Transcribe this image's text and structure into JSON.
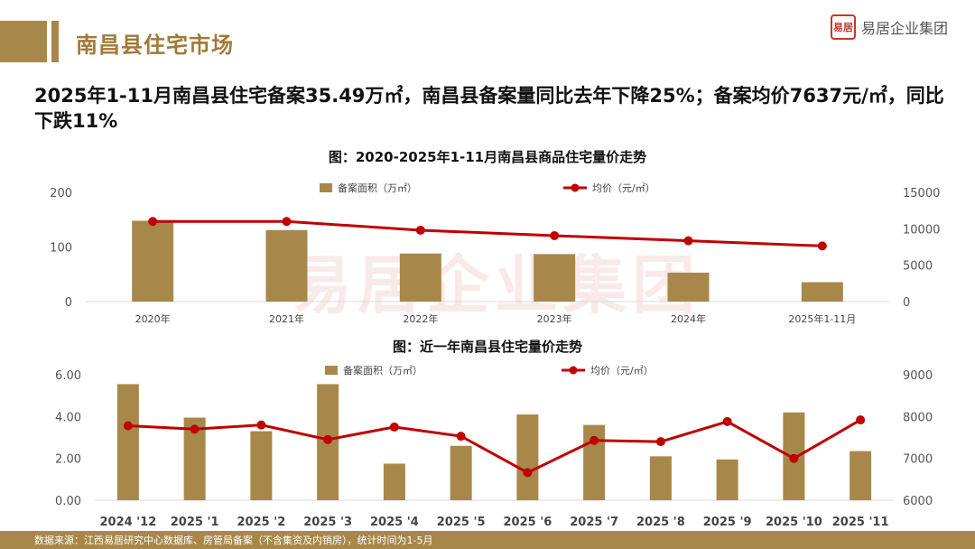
{
  "header": {
    "title": "南昌县住宅市场",
    "logo_text": "易居企业集团",
    "logo_seal": "易居"
  },
  "headline": "2025年1-11月南昌县住宅备案35.49万㎡，南昌县备案量同比去年下降25%；备案均价7637元/㎡，同比下跌11%",
  "watermark": "易居企业集团",
  "footer": "数据来源：江西易居研究中心数据库、房管局备案（不含集资及内销房），统计时间为1-5月",
  "colors": {
    "bar": "#a8884a",
    "line": "#c00000",
    "accent": "#a8884a"
  },
  "chart_data": [
    {
      "type": "bar+line",
      "title": "图：2020-2025年1-11月南昌县商品住宅量价走势",
      "categories": [
        "2020年",
        "2021年",
        "2022年",
        "2023年",
        "2024年",
        "2025年1-11月"
      ],
      "series": [
        {
          "name": "备案面积（万㎡）",
          "type": "bar",
          "axis": "left",
          "values": [
            148,
            131,
            88,
            87,
            53,
            35.49
          ]
        },
        {
          "name": "均价（元/㎡）",
          "type": "line",
          "axis": "right",
          "values": [
            11000,
            11000,
            9800,
            9050,
            8350,
            7637
          ]
        }
      ],
      "y_left": {
        "ylim": [
          0,
          200
        ],
        "ticks": [
          "0",
          "100",
          "200"
        ]
      },
      "y_right": {
        "ylim": [
          0,
          15000
        ],
        "ticks": [
          "0",
          "5000",
          "10000",
          "15000"
        ]
      },
      "legend": "top-center",
      "grid": false
    },
    {
      "type": "bar+line",
      "title": "图：近一年南昌县住宅量价走势",
      "categories": [
        "2024 '12",
        "2025 '1",
        "2025 '2",
        "2025 '3",
        "2025 '4",
        "2025 '5",
        "2025 '6",
        "2025 '7",
        "2025 '8",
        "2025 '9",
        "2025 '10",
        "2025 '11"
      ],
      "series": [
        {
          "name": "备案面积（万㎡）",
          "type": "bar",
          "axis": "left",
          "values": [
            5.55,
            3.95,
            3.3,
            5.55,
            1.75,
            2.6,
            4.1,
            3.6,
            2.1,
            1.95,
            4.2,
            2.35
          ]
        },
        {
          "name": "均价（元/㎡）",
          "type": "line",
          "axis": "right",
          "values": [
            7780,
            7700,
            7800,
            7450,
            7750,
            7530,
            6660,
            7430,
            7400,
            7880,
            7000,
            7920
          ]
        }
      ],
      "y_left": {
        "ylim": [
          0,
          6
        ],
        "ticks": [
          "0.00",
          "2.00",
          "4.00",
          "6.00"
        ]
      },
      "y_right": {
        "ylim": [
          6000,
          9000
        ],
        "ticks": [
          "6000",
          "7000",
          "8000",
          "9000"
        ]
      },
      "legend": "top-center",
      "grid": false
    }
  ]
}
